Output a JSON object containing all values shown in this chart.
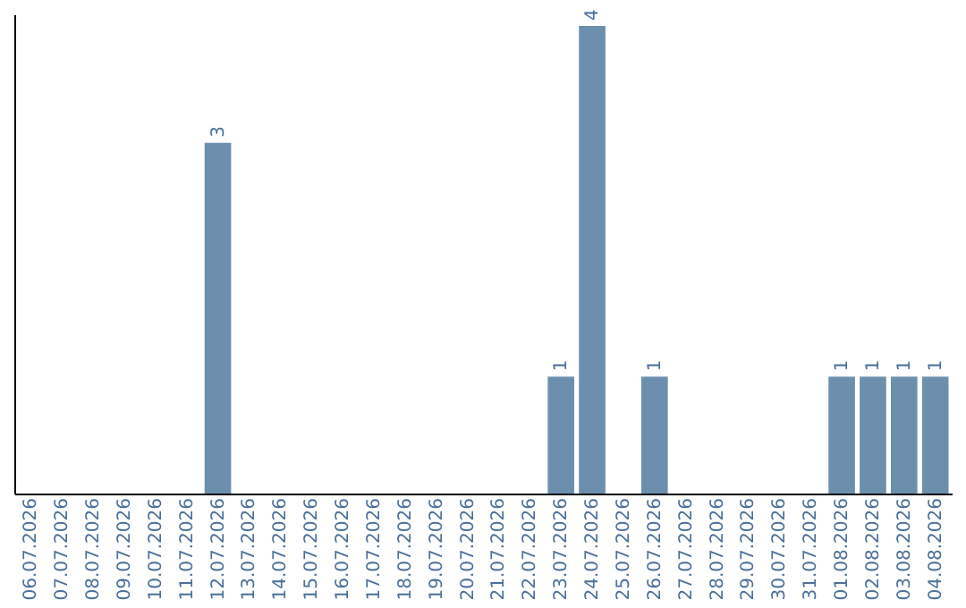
{
  "chart_data": {
    "type": "bar",
    "categories": [
      "06.07.2026",
      "07.07.2026",
      "08.07.2026",
      "09.07.2026",
      "10.07.2026",
      "11.07.2026",
      "12.07.2026",
      "13.07.2026",
      "14.07.2026",
      "15.07.2026",
      "16.07.2026",
      "17.07.2026",
      "18.07.2026",
      "19.07.2026",
      "20.07.2026",
      "21.07.2026",
      "22.07.2026",
      "23.07.2026",
      "24.07.2026",
      "25.07.2026",
      "26.07.2026",
      "27.07.2026",
      "28.07.2026",
      "29.07.2026",
      "30.07.2026",
      "31.07.2026",
      "01.08.2026",
      "02.08.2026",
      "03.08.2026",
      "04.08.2026"
    ],
    "values": [
      0,
      0,
      0,
      0,
      0,
      0,
      3,
      0,
      0,
      0,
      0,
      0,
      0,
      0,
      0,
      0,
      0,
      1,
      4,
      0,
      1,
      0,
      0,
      0,
      0,
      0,
      1,
      1,
      1,
      1
    ],
    "value_labels": [
      null,
      null,
      null,
      null,
      null,
      null,
      "3",
      null,
      null,
      null,
      null,
      null,
      null,
      null,
      null,
      null,
      null,
      "1",
      "4",
      null,
      "1",
      null,
      null,
      null,
      null,
      null,
      "1",
      "1",
      "1",
      "1"
    ],
    "color": "#6d8fae",
    "ylim": [
      0,
      4.1
    ],
    "tick_labels": "x",
    "grid": false
  }
}
